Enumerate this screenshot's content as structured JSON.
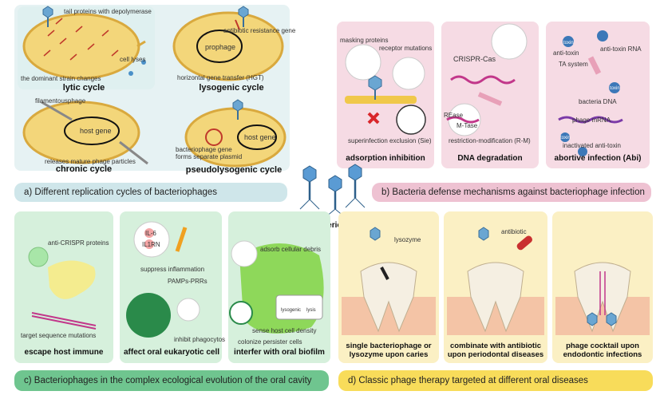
{
  "panel_a": {
    "banner": "a) Different replication cycles of bacteriophages",
    "lytic": {
      "title": "lytic cycle",
      "tail_proteins": "tail proteins with depolymerase",
      "cell_lyses": "cell lyses",
      "strain_changes": "the dominant strain changes"
    },
    "lysogenic": {
      "title": "lysogenic cycle",
      "prophage": "prophage",
      "resistance_gene": "antibiotic resistance gene",
      "hgt": "horizontal gene transfer (HGT)"
    },
    "chronic": {
      "title": "chronic cycle",
      "filamentous": "filamentousphage",
      "host_gene": "host gene",
      "releases": "releases mature phage particles"
    },
    "pseudolysogenic": {
      "title": "pseudolysogenic cycle",
      "host_gene": "host gene",
      "plasmid": "bacteriophage gene\nforms separate plasmid"
    }
  },
  "panel_b": {
    "banner": "b) Bacteria defense mechanisms against bacteriophage infection",
    "adsorption": {
      "title": "adsorption inhibition",
      "masking": "masking proteins",
      "receptor": "receptor mutations",
      "sie": "superinfection exclusion (Sie)"
    },
    "dna": {
      "title": "DNA degradation",
      "crispr": "CRISPR-Cas",
      "rease": "REase",
      "mtase": "M-Tase",
      "rm": "restriction-modification (R-M)"
    },
    "abortive": {
      "title": "abortive infection (Abi)",
      "toxin": "toxin",
      "anti_toxin_rna": "anti-toxin RNA",
      "anti_toxin": "anti-toxin",
      "ta_system": "TA system",
      "toxin2": "toxin",
      "bacteria_dna": "bacteria DNA",
      "toxin3": "toxin",
      "phage_mrna": "phage mRNA",
      "inactivated": "inactivated anti-toxin"
    }
  },
  "center": {
    "label": "oral bacteriophages"
  },
  "panel_c": {
    "banner": "c) Bacteriophages in the complex ecological evolution of the oral cavity",
    "escape": {
      "title": "escape host immune",
      "anti_crispr": "anti-CRISPR proteins",
      "target_mut": "target sequence mutations"
    },
    "affect": {
      "title": "affect oral eukaryotic cell",
      "il6": "IL-6",
      "il1rn": "IL1RN",
      "suppress": "suppress inflammation",
      "pamps": "PAMPs-PRRs",
      "inhibit": "inhibit phagocytos"
    },
    "biofilm": {
      "title": "interfer with oral biofilm",
      "adsorb": "adsorb cellular debris",
      "sense": "sense host cell density",
      "colonize": "colonize persister cells",
      "lysis": "lysis",
      "lysogenic": "lysogenic"
    }
  },
  "panel_d": {
    "banner": "d) Classic phage therapy targeted at different oral diseases",
    "single": {
      "caption": "single bacteriophage or\nlysozyme upon caries",
      "lysozyme": "lysozyme"
    },
    "combine": {
      "caption": "combinate with antibiotic\nupon periodontal diseases",
      "antibiotic": "antibiotic"
    },
    "cocktail": {
      "caption": "phage cocktail upon\nendodontic infections"
    }
  },
  "colors": {
    "a": "#d7ecef",
    "b": "#f0c8d6",
    "c": "#6fc58f",
    "d": "#f8dc5a",
    "cell": "#f3d67a"
  }
}
